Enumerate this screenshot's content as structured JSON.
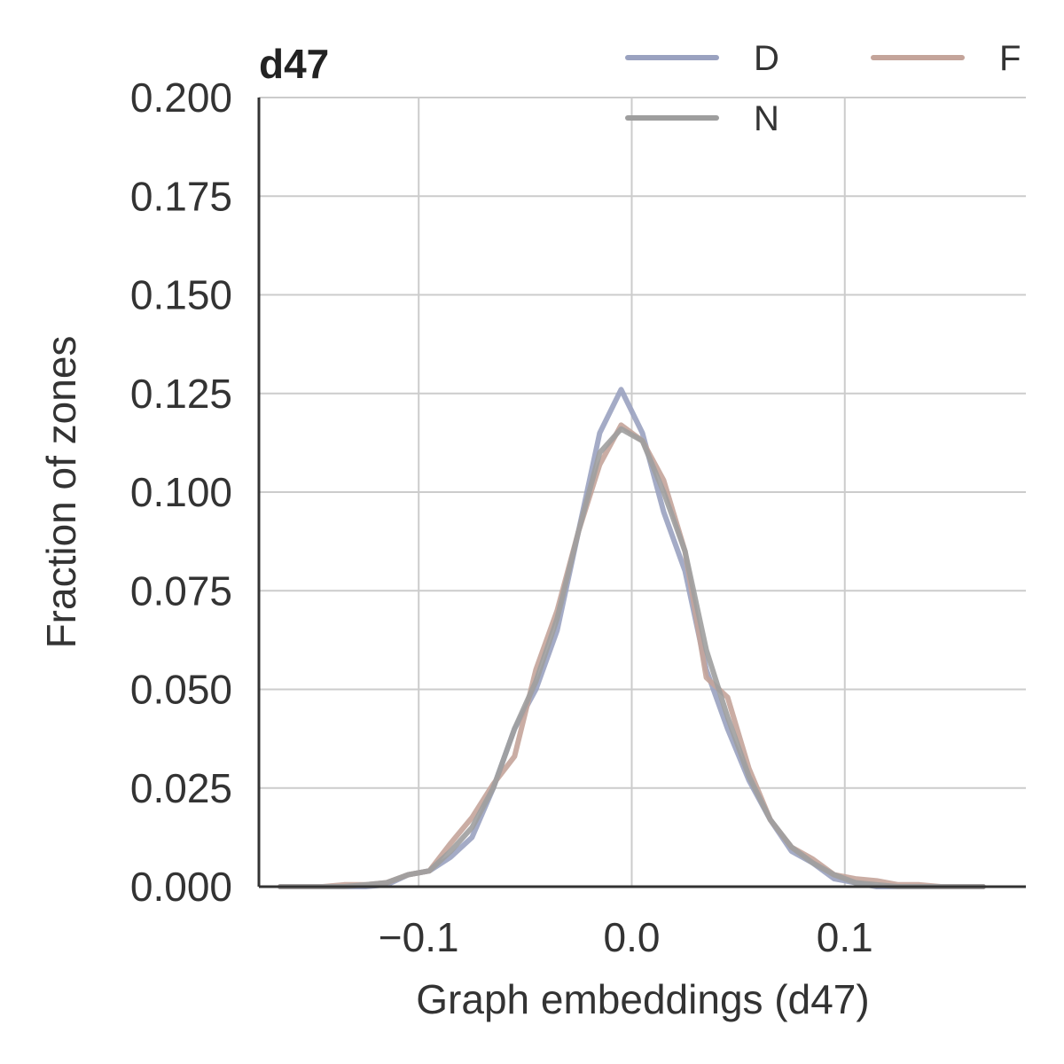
{
  "chart_data": {
    "type": "line",
    "title": "d47",
    "xlabel": "Graph embeddings (d47)",
    "ylabel": "Fraction of zones",
    "xlim": [
      -0.175,
      0.185
    ],
    "ylim": [
      0,
      0.2
    ],
    "x_ticks": [
      -0.1,
      0.0,
      0.1
    ],
    "x_tick_labels": [
      "−0.1",
      "0.0",
      "0.1"
    ],
    "y_ticks": [
      0,
      0.025,
      0.05,
      0.075,
      0.1,
      0.125,
      0.15,
      0.175,
      0.2
    ],
    "y_tick_labels": [
      "0.000",
      "0.025",
      "0.050",
      "0.075",
      "0.100",
      "0.125",
      "0.150",
      "0.175",
      "0.200"
    ],
    "grid": true,
    "legend_position": "top-right",
    "series": [
      {
        "name": "D",
        "color": "#9aa2c0",
        "x": [
          -0.165,
          -0.155,
          -0.145,
          -0.135,
          -0.125,
          -0.115,
          -0.105,
          -0.095,
          -0.085,
          -0.075,
          -0.065,
          -0.055,
          -0.045,
          -0.035,
          -0.025,
          -0.015,
          -0.005,
          0.005,
          0.015,
          0.025,
          0.035,
          0.045,
          0.055,
          0.065,
          0.075,
          0.085,
          0.095,
          0.105,
          0.115,
          0.125,
          0.135,
          0.145,
          0.155,
          0.165
        ],
        "y": [
          0,
          0,
          0,
          0,
          0,
          0.0005,
          0.003,
          0.004,
          0.0075,
          0.0125,
          0.025,
          0.04,
          0.05,
          0.065,
          0.09,
          0.115,
          0.126,
          0.115,
          0.095,
          0.08,
          0.055,
          0.04,
          0.027,
          0.017,
          0.009,
          0.006,
          0.002,
          0.001,
          0,
          0,
          0,
          0,
          0,
          0
        ]
      },
      {
        "name": "F",
        "color": "#c4a49a",
        "x": [
          -0.165,
          -0.155,
          -0.145,
          -0.135,
          -0.125,
          -0.115,
          -0.105,
          -0.095,
          -0.085,
          -0.075,
          -0.065,
          -0.055,
          -0.045,
          -0.035,
          -0.025,
          -0.015,
          -0.005,
          0.005,
          0.015,
          0.025,
          0.035,
          0.045,
          0.055,
          0.065,
          0.075,
          0.085,
          0.095,
          0.105,
          0.115,
          0.125,
          0.135,
          0.145,
          0.155,
          0.165
        ],
        "y": [
          0,
          0,
          0,
          0.0005,
          0.0005,
          0.001,
          0.003,
          0.004,
          0.011,
          0.0175,
          0.026,
          0.033,
          0.055,
          0.07,
          0.09,
          0.107,
          0.117,
          0.113,
          0.103,
          0.085,
          0.053,
          0.048,
          0.03,
          0.017,
          0.01,
          0.007,
          0.003,
          0.002,
          0.0015,
          0.0005,
          0.0005,
          0,
          0,
          0
        ]
      },
      {
        "name": "N",
        "color": "#9e9e9e",
        "x": [
          -0.165,
          -0.155,
          -0.145,
          -0.135,
          -0.125,
          -0.115,
          -0.105,
          -0.095,
          -0.085,
          -0.075,
          -0.065,
          -0.055,
          -0.045,
          -0.035,
          -0.025,
          -0.015,
          -0.005,
          0.005,
          0.015,
          0.025,
          0.035,
          0.045,
          0.055,
          0.065,
          0.075,
          0.085,
          0.095,
          0.105,
          0.115,
          0.125,
          0.135,
          0.145,
          0.155,
          0.165
        ],
        "y": [
          0,
          0,
          0,
          0,
          0.0005,
          0.001,
          0.003,
          0.004,
          0.009,
          0.015,
          0.025,
          0.04,
          0.052,
          0.068,
          0.09,
          0.11,
          0.116,
          0.113,
          0.1,
          0.085,
          0.06,
          0.043,
          0.028,
          0.017,
          0.01,
          0.006,
          0.003,
          0.001,
          0.0005,
          0,
          0,
          0,
          0,
          0
        ]
      }
    ]
  }
}
